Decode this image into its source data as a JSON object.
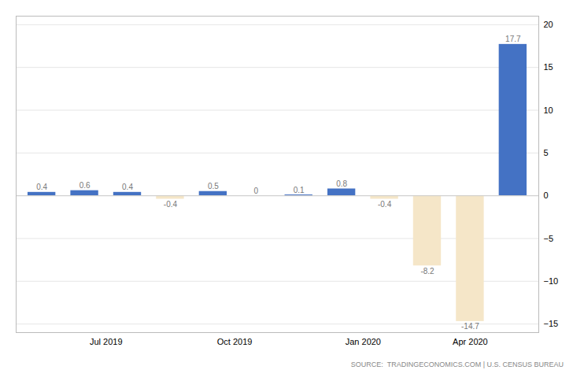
{
  "chart_data": {
    "type": "bar",
    "x": [
      0,
      1,
      2,
      3,
      4,
      5,
      6,
      7,
      8,
      9,
      10,
      11
    ],
    "values": [
      0.4,
      0.6,
      0.4,
      -0.4,
      0.5,
      0,
      0.1,
      0.8,
      -0.4,
      -8.2,
      -14.7,
      17.7
    ],
    "colors": [
      "#4472c4",
      "#4472c4",
      "#4472c4",
      "#f5e6c8",
      "#4472c4",
      "#f5e6c8",
      "#4472c4",
      "#4472c4",
      "#f5e6c8",
      "#f5e6c8",
      "#f5e6c8",
      "#4472c4"
    ],
    "data_labels": true,
    "xlim": [
      -0.6,
      11.6
    ],
    "xticks": [
      {
        "value": 1.5,
        "label": "Jul 2019"
      },
      {
        "value": 4.5,
        "label": "Oct 2019"
      },
      {
        "value": 7.5,
        "label": "Jan 2020"
      },
      {
        "value": 10.0,
        "label": "Apr 2020"
      }
    ],
    "ylim": [
      -16,
      21
    ],
    "yticks": [
      -15,
      -10,
      -5,
      0,
      5,
      10,
      15,
      20
    ],
    "grid": true,
    "annotations": [
      "SOURCE:  TRADINGECONOMICS.COM | U.S. CENSUS BUREAU"
    ]
  }
}
